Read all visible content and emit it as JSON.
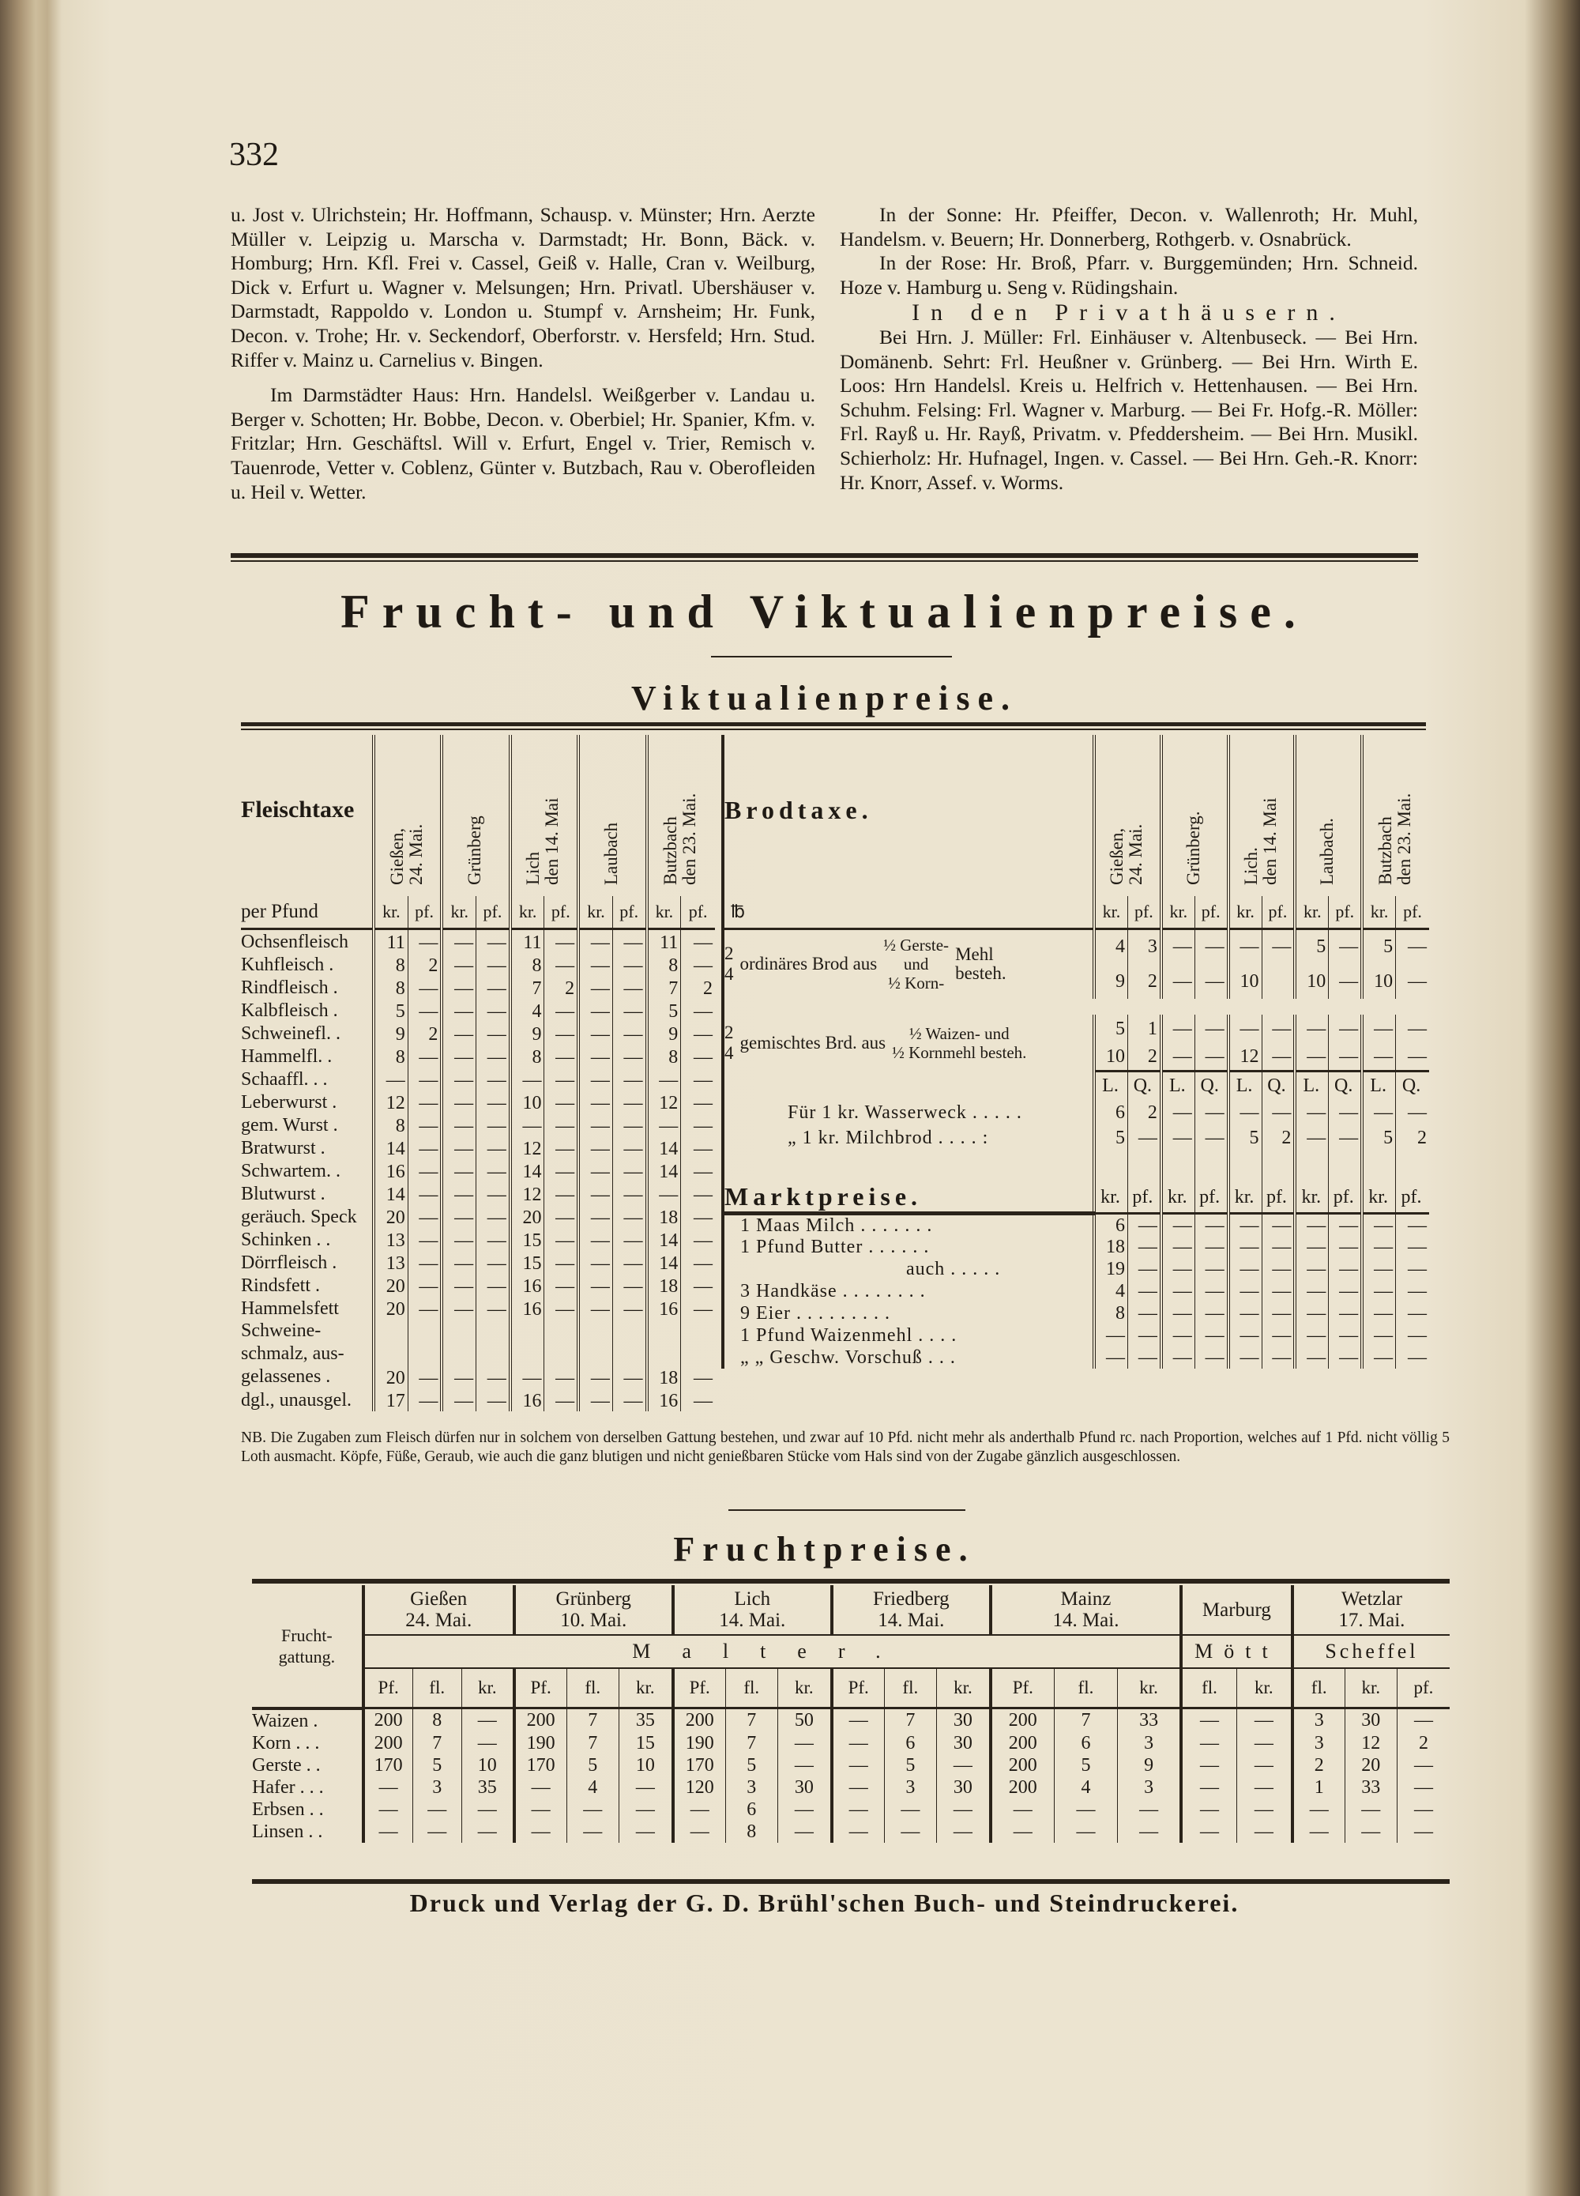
{
  "page_number": "332",
  "left_column": {
    "paragraphs": [
      "u. Jost v. Ulrichstein; Hr. Hoffmann, Schausp. v. Münster; Hrn. Aerzte Müller v. Leipzig u. Marscha v. Darmstadt; Hr. Bonn, Bäck. v. Homburg; Hrn. Kfl. Frei v. Cassel, Geiß v. Halle, Cran v. Weilburg, Dick v. Erfurt u. Wagner v. Melsungen; Hrn. Privatl. Ubershäuser v. Darmstadt, Rappoldo v. London u. Stumpf v. Arnsheim; Hr. Funk, Decon. v. Trohe; Hr. v. Seckendorf, Oberforstr. v. Hersfeld; Hrn. Stud. Riffer v. Mainz u. Carnelius v. Bingen.",
      "Im Darmstädter Haus: Hrn. Handelsl. Weißgerber v. Landau u. Berger v. Schotten; Hr. Bobbe, Decon. v. Oberbiel; Hr. Spanier, Kfm. v. Fritzlar; Hrn. Geschäftsl. Will v. Erfurt, Engel v. Trier, Remisch v. Tauenrode, Vetter v. Coblenz, Günter v. Butzbach, Rau v. Oberofleiden u. Heil v. Wetter."
    ]
  },
  "right_column": {
    "sonne": "In der Sonne: Hr. Pfeiffer, Decon. v. Wallenroth; Hr. Muhl, Handelsm. v. Beuern; Hr. Donnerberg, Rothgerb. v. Osnabrück.",
    "rose": "In der Rose: Hr. Broß, Pfarr. v. Burggemünden; Hrn. Schneid. Hoze v. Hamburg u. Seng v. Rüdingshain.",
    "heading": "In den Privathäusern.",
    "privat": "Bei Hrn. J. Müller: Frl. Einhäuser v. Altenbuseck. — Bei Hrn. Domänenb. Sehrt: Frl. Heußner v. Grünberg. — Bei Hrn. Wirth E. Loos: Hrn Handelsl. Kreis u. Helfrich v. Hettenhausen. — Bei Hrn. Schuhm. Felsing: Frl. Wagner v. Marburg. — Bei Fr. Hofg.-R. Möller: Frl. Rayß u. Hr. Rayß, Privatm. v. Pfeddersheim. — Bei Hrn. Musikl. Schierholz: Hr. Hufnagel, Ingen. v. Cassel. — Bei Hrn. Geh.-R. Knorr: Hr. Knorr, Assef. v. Worms."
  },
  "main_title": "Frucht- und Viktualienpreise.",
  "viktualien_title": "Viktualienpreise.",
  "fleischtaxe": {
    "title": "Fleischtaxe",
    "unit": "per Pfund",
    "places": [
      "Gießen,\n24. Mai.",
      "Grünberg",
      "Lich\nden 14. Mai",
      "Laubach",
      "Butzbach\nden 23. Mai."
    ],
    "subheaders": [
      "kr.",
      "pf.",
      "kr.",
      "pf.",
      "kr.",
      "pf.",
      "kr.",
      "pf.",
      "kr.",
      "pf."
    ],
    "rows": [
      {
        "item": "Ochsenfleisch",
        "values": [
          "11",
          "—",
          "—",
          "—",
          "11",
          "—",
          "—",
          "—",
          "11",
          "—"
        ]
      },
      {
        "item": "Kuhfleisch .",
        "values": [
          "8",
          "2",
          "—",
          "—",
          "8",
          "—",
          "—",
          "—",
          "8",
          "—"
        ]
      },
      {
        "item": "Rindfleisch .",
        "values": [
          "8",
          "—",
          "—",
          "—",
          "7",
          "2",
          "—",
          "—",
          "7",
          "2"
        ]
      },
      {
        "item": "Kalbfleisch .",
        "values": [
          "5",
          "—",
          "—",
          "—",
          "4",
          "—",
          "—",
          "—",
          "5",
          "—"
        ]
      },
      {
        "item": "Schweinefl. .",
        "values": [
          "9",
          "2",
          "—",
          "—",
          "9",
          "—",
          "—",
          "—",
          "9",
          "—"
        ]
      },
      {
        "item": "Hammelfl. .",
        "values": [
          "8",
          "—",
          "—",
          "—",
          "8",
          "—",
          "—",
          "—",
          "8",
          "—"
        ]
      },
      {
        "item": "Schaaffl. . .",
        "values": [
          "—",
          "—",
          "—",
          "—",
          "—",
          "—",
          "—",
          "—",
          "—",
          "—"
        ]
      },
      {
        "item": "Leberwurst .",
        "values": [
          "12",
          "—",
          "—",
          "—",
          "10",
          "—",
          "—",
          "—",
          "12",
          "—"
        ]
      },
      {
        "item": "gem. Wurst .",
        "values": [
          "8",
          "—",
          "—",
          "—",
          "—",
          "—",
          "—",
          "—",
          "—",
          "—"
        ]
      },
      {
        "item": "Bratwurst .",
        "values": [
          "14",
          "—",
          "—",
          "—",
          "12",
          "—",
          "—",
          "—",
          "14",
          "—"
        ]
      },
      {
        "item": "Schwartem. .",
        "values": [
          "16",
          "—",
          "—",
          "—",
          "14",
          "—",
          "—",
          "—",
          "14",
          "—"
        ]
      },
      {
        "item": "Blutwurst .",
        "values": [
          "14",
          "—",
          "—",
          "—",
          "12",
          "—",
          "—",
          "—",
          "—",
          "—"
        ]
      },
      {
        "item": "geräuch. Speck",
        "values": [
          "20",
          "—",
          "—",
          "—",
          "20",
          "—",
          "—",
          "—",
          "18",
          "—"
        ]
      },
      {
        "item": "Schinken . .",
        "values": [
          "13",
          "—",
          "—",
          "—",
          "15",
          "—",
          "—",
          "—",
          "14",
          "—"
        ]
      },
      {
        "item": "Dörrfleisch .",
        "values": [
          "13",
          "—",
          "—",
          "—",
          "15",
          "—",
          "—",
          "—",
          "14",
          "—"
        ]
      },
      {
        "item": "Rindsfett .",
        "values": [
          "20",
          "—",
          "—",
          "—",
          "16",
          "—",
          "—",
          "—",
          "18",
          "—"
        ]
      },
      {
        "item": "Hammelsfett",
        "values": [
          "20",
          "—",
          "—",
          "—",
          "16",
          "—",
          "—",
          "—",
          "16",
          "—"
        ]
      },
      {
        "item": "Schweine- schmalz, aus- gelassenes .",
        "values": [
          "20",
          "—",
          "—",
          "—",
          "—",
          "—",
          "—",
          "—",
          "18",
          "—"
        ]
      },
      {
        "item": "dgl., unausgel.",
        "values": [
          "17",
          "—",
          "—",
          "—",
          "16",
          "—",
          "—",
          "—",
          "16",
          "—"
        ]
      }
    ]
  },
  "brodtaxe": {
    "title": "Brodtaxe.",
    "weight_header": "℔",
    "places": [
      "Gießen,\n24. Mai.",
      "Grünberg.",
      "Lich.\nden 14. Mai",
      "Laubach.",
      "Butzbach\nden 23. Mai."
    ],
    "subheaders": [
      "kr.",
      "pf.",
      "kr.",
      "pf.",
      "kr.",
      "pf.",
      "kr.",
      "pf.",
      "kr.",
      "pf."
    ],
    "ordinary": {
      "weights": [
        "2",
        "4"
      ],
      "label": "ordinäres Brod aus",
      "mix_top": "½ Gerste-",
      "mix_mid": "und",
      "mix_bottom": "½ Korn-",
      "suffix": "Mehl besteh.",
      "values": [
        [
          "4",
          "3",
          "—",
          "—",
          "—",
          "—",
          "5",
          "—",
          "5",
          "—"
        ],
        [
          "9",
          "2",
          "—",
          "—",
          "10",
          "",
          "10",
          "—",
          "10",
          "—"
        ]
      ]
    },
    "mixed": {
      "weights": [
        "2",
        "4"
      ],
      "label": "gemischtes Brd. aus",
      "mix_top": "½ Waizen- und",
      "mix_bottom": "½ Kornmehl besteh.",
      "values": [
        [
          "5",
          "1",
          "—",
          "—",
          "—",
          "—",
          "—",
          "—",
          "—",
          "—"
        ],
        [
          "10",
          "2",
          "—",
          "—",
          "12",
          "—",
          "—",
          "—",
          "—",
          "—"
        ]
      ]
    },
    "weight_subheaders": [
      "L.",
      "Q.",
      "L.",
      "Q.",
      "L.",
      "Q.",
      "L.",
      "Q.",
      "L.",
      "Q."
    ],
    "rolls": [
      {
        "item": "Für 1 kr. Wasserweck . . . . .",
        "values": [
          "6",
          "2",
          "—",
          "—",
          "—",
          "—",
          "—",
          "—",
          "—",
          "—"
        ]
      },
      {
        "item": "„ 1 kr. Milchbrod . . . . :",
        "values": [
          "5",
          "—",
          "—",
          "—",
          "5",
          "2",
          "—",
          "—",
          "5",
          "2"
        ]
      }
    ]
  },
  "marktpreise": {
    "title": "Marktpreise.",
    "subheaders": [
      "kr.",
      "pf.",
      "kr.",
      "pf.",
      "kr.",
      "pf.",
      "kr.",
      "pf.",
      "kr.",
      "pf."
    ],
    "rows": [
      {
        "item": "1 Maas Milch . . . . . . .",
        "values": [
          "6",
          "—",
          "—",
          "—",
          "—",
          "—",
          "—",
          "—",
          "—",
          "—"
        ]
      },
      {
        "item": "1 Pfund Butter . . . . . .",
        "values": [
          "18",
          "—",
          "—",
          "—",
          "—",
          "—",
          "—",
          "—",
          "—",
          "—"
        ]
      },
      {
        "item": "auch . . . . .",
        "values": [
          "19",
          "—",
          "—",
          "—",
          "—",
          "—",
          "—",
          "—",
          "—",
          "—"
        ]
      },
      {
        "item": "3 Handkäse . . . . . . . .",
        "values": [
          "4",
          "—",
          "—",
          "—",
          "—",
          "—",
          "—",
          "—",
          "—",
          "—"
        ]
      },
      {
        "item": "9 Eier . . . . . . . . .",
        "values": [
          "8",
          "—",
          "—",
          "—",
          "—",
          "—",
          "—",
          "—",
          "—",
          "—"
        ]
      },
      {
        "item": "1 Pfund Waizenmehl . . . .",
        "values": [
          "—",
          "—",
          "—",
          "—",
          "—",
          "—",
          "—",
          "—",
          "—",
          "—"
        ]
      },
      {
        "item": "„ „ Geschw. Vorschuß . . .",
        "values": [
          "—",
          "—",
          "—",
          "—",
          "—",
          "—",
          "—",
          "—",
          "—",
          "—"
        ]
      }
    ]
  },
  "nb_note": "NB. Die Zugaben zum Fleisch dürfen nur in solchem von derselben Gattung bestehen, und zwar auf 10 Pfd. nicht mehr als anderthalb Pfund rc. nach Proportion, welches auf 1 Pfd. nicht völlig 5 Loth ausmacht. Köpfe, Füße, Geraub, wie auch die ganz blutigen und nicht genießbaren Stücke vom Hals sind von der Zugabe gänzlich ausgeschlossen.",
  "fruchtpreise": {
    "title": "Fruchtpreise.",
    "label_header": "Frucht-gattung.",
    "places": [
      {
        "name": "Gießen",
        "date": "24. Mai."
      },
      {
        "name": "Grünberg",
        "date": "10. Mai."
      },
      {
        "name": "Lich",
        "date": "14. Mai."
      },
      {
        "name": "Friedberg",
        "date": "14. Mai."
      },
      {
        "name": "Mainz",
        "date": "14. Mai."
      },
      {
        "name": "Marburg",
        "date": ""
      },
      {
        "name": "Wetzlar",
        "date": "17. Mai."
      }
    ],
    "malter_label": "Malter.",
    "marburg_measure": "Mött",
    "wetzlar_measure": "Scheffel",
    "subheaders": [
      "Pf.",
      "fl.",
      "kr.",
      "Pf.",
      "fl.",
      "kr.",
      "Pf.",
      "fl.",
      "kr.",
      "Pf.",
      "fl.",
      "kr.",
      "Pf.",
      "fl.",
      "kr.",
      "fl.",
      "kr.",
      "fl.",
      "kr.",
      "pf."
    ],
    "rows": [
      {
        "item": "Waizen .",
        "values": [
          "200",
          "8",
          "—",
          "200",
          "7",
          "35",
          "200",
          "7",
          "50",
          "—",
          "7",
          "30",
          "200",
          "7",
          "33",
          "—",
          "—",
          "3",
          "30",
          "—"
        ]
      },
      {
        "item": "Korn . . .",
        "values": [
          "200",
          "7",
          "—",
          "190",
          "7",
          "15",
          "190",
          "7",
          "—",
          "—",
          "6",
          "30",
          "200",
          "6",
          "3",
          "—",
          "—",
          "3",
          "12",
          "2"
        ]
      },
      {
        "item": "Gerste . .",
        "values": [
          "170",
          "5",
          "10",
          "170",
          "5",
          "10",
          "170",
          "5",
          "—",
          "—",
          "5",
          "—",
          "200",
          "5",
          "9",
          "—",
          "—",
          "2",
          "20",
          "—"
        ]
      },
      {
        "item": "Hafer . . .",
        "values": [
          "—",
          "3",
          "35",
          "—",
          "4",
          "—",
          "120",
          "3",
          "30",
          "—",
          "3",
          "30",
          "200",
          "4",
          "3",
          "—",
          "—",
          "1",
          "33",
          "—"
        ]
      },
      {
        "item": "Erbsen . .",
        "values": [
          "—",
          "—",
          "—",
          "—",
          "—",
          "—",
          "—",
          "6",
          "—",
          "—",
          "—",
          "—",
          "—",
          "—",
          "—",
          "—",
          "—",
          "—",
          "—",
          "—"
        ]
      },
      {
        "item": "Linsen . .",
        "values": [
          "—",
          "—",
          "—",
          "—",
          "—",
          "—",
          "—",
          "8",
          "—",
          "—",
          "—",
          "—",
          "—",
          "—",
          "—",
          "—",
          "—",
          "—",
          "—",
          "—"
        ]
      }
    ]
  },
  "footer": "Druck und Verlag der G. D. Brühl'schen Buch- und Steindruckerei."
}
